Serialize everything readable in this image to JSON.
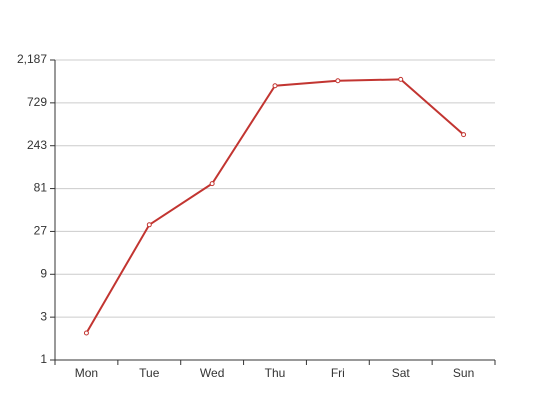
{
  "chart_data": {
    "type": "line",
    "yscale": "log",
    "categories": [
      "Mon",
      "Tue",
      "Wed",
      "Thu",
      "Fri",
      "Sat",
      "Sun"
    ],
    "values": [
      2,
      32,
      92,
      1130,
      1285,
      1330,
      323
    ],
    "color": "#c23531",
    "ylim": [
      1,
      2187
    ],
    "yticks": [
      1,
      3,
      9,
      27,
      81,
      243,
      729,
      {
        "value": 2187,
        "label": "2,187"
      }
    ],
    "grid": true
  }
}
